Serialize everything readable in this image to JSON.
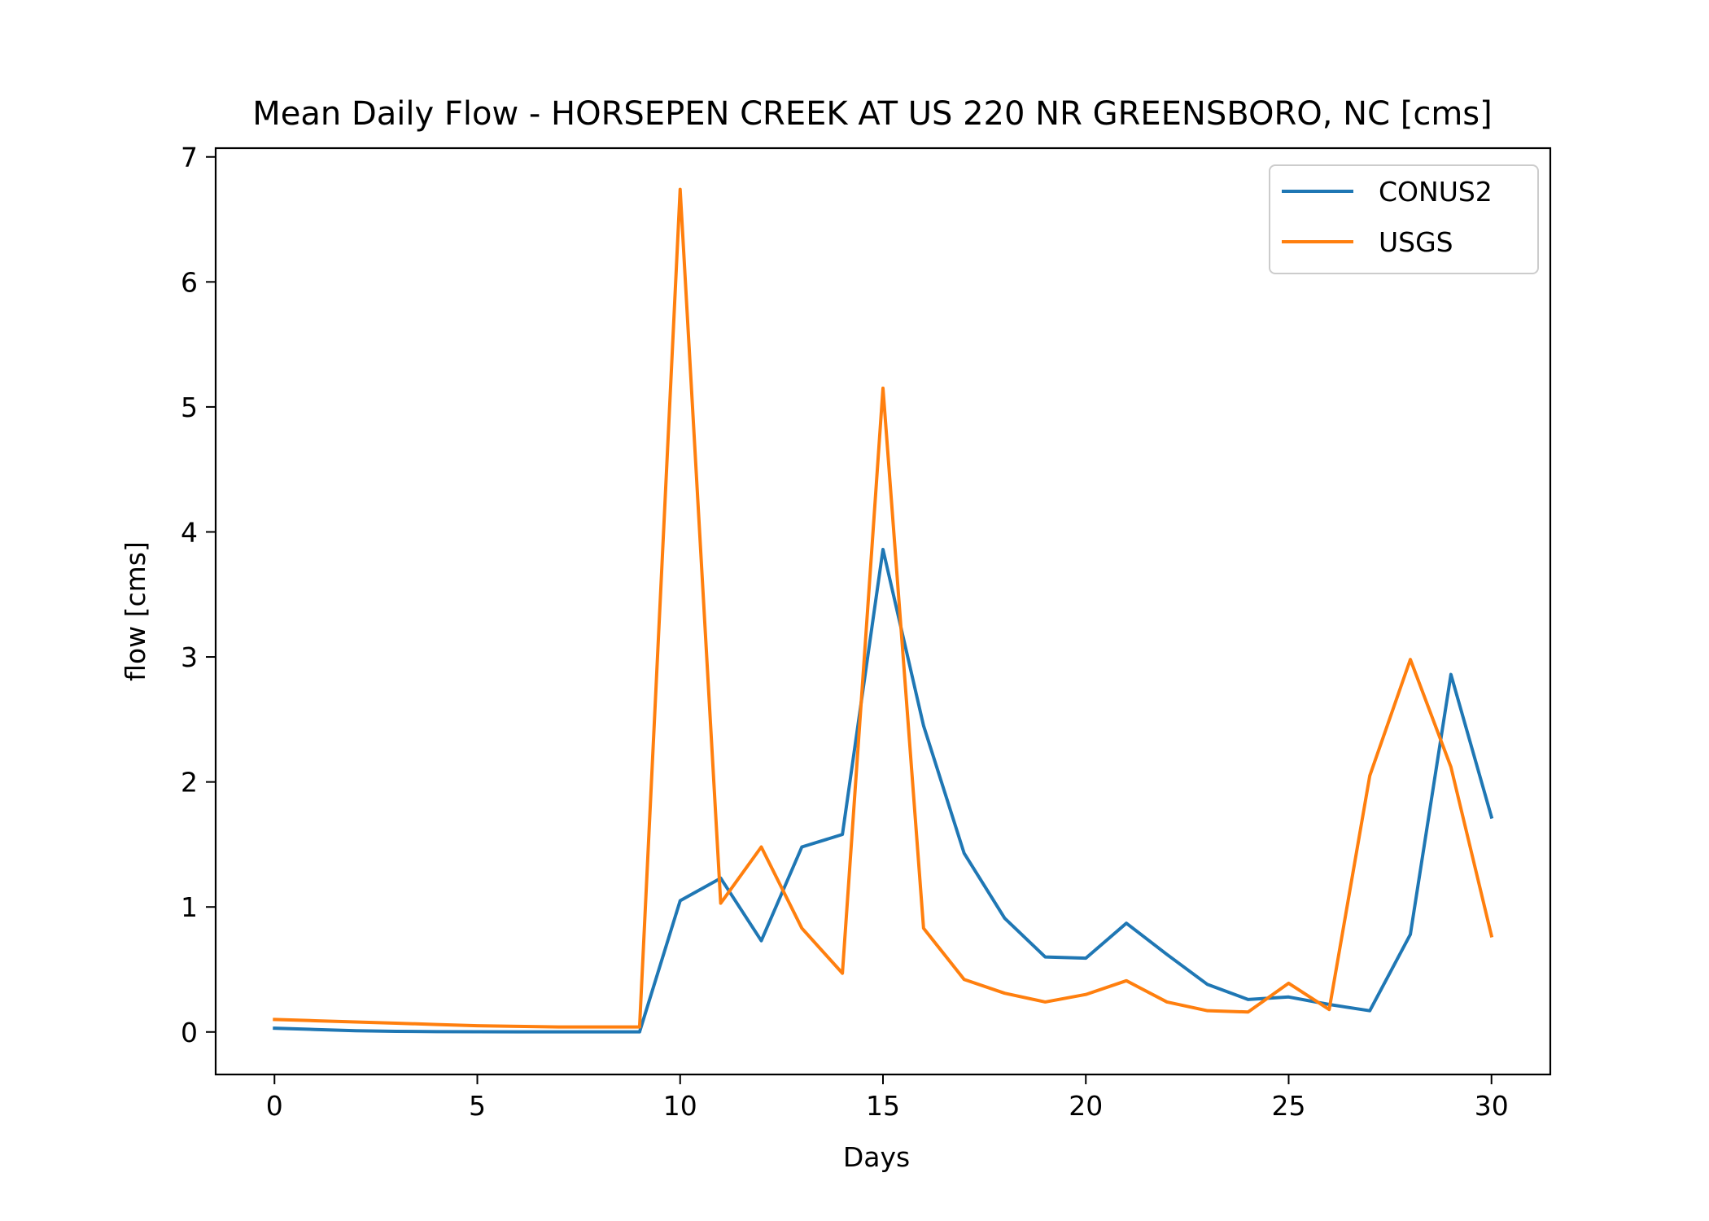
{
  "chart_data": {
    "type": "line",
    "title": "Mean Daily Flow - HORSEPEN CREEK AT US 220 NR GREENSBORO, NC [cms]",
    "xlabel": "Days",
    "ylabel": "flow [cms]",
    "xlim": [
      -1.45,
      31.45
    ],
    "ylim": [
      -0.34,
      7.07
    ],
    "xticks": [
      0,
      5,
      10,
      15,
      20,
      25,
      30
    ],
    "yticks": [
      0,
      1,
      2,
      3,
      4,
      5,
      6,
      7
    ],
    "grid": false,
    "legend": {
      "location": "upper right"
    },
    "x": [
      0,
      1,
      2,
      3,
      4,
      5,
      6,
      7,
      8,
      9,
      10,
      11,
      12,
      13,
      14,
      15,
      16,
      17,
      18,
      19,
      20,
      21,
      22,
      23,
      24,
      25,
      26,
      27,
      28,
      29,
      30
    ],
    "series": [
      {
        "name": "CONUS2",
        "color": "#1f77b4",
        "values": [
          0.03,
          0.02,
          0.01,
          0.005,
          0.003,
          0.002,
          0.001,
          0.001,
          0.001,
          0.001,
          1.05,
          1.23,
          0.73,
          1.48,
          1.58,
          3.86,
          2.45,
          1.43,
          0.91,
          0.6,
          0.59,
          0.87,
          0.62,
          0.38,
          0.26,
          0.28,
          0.22,
          0.17,
          0.78,
          2.86,
          1.72
        ]
      },
      {
        "name": "USGS",
        "color": "#ff7f0e",
        "values": [
          0.1,
          0.09,
          0.08,
          0.07,
          0.06,
          0.05,
          0.045,
          0.04,
          0.04,
          0.04,
          6.74,
          1.03,
          1.48,
          0.83,
          0.47,
          5.15,
          0.83,
          0.42,
          0.31,
          0.24,
          0.3,
          0.41,
          0.24,
          0.17,
          0.16,
          0.39,
          0.18,
          2.05,
          2.98,
          2.12,
          0.77
        ]
      }
    ]
  }
}
